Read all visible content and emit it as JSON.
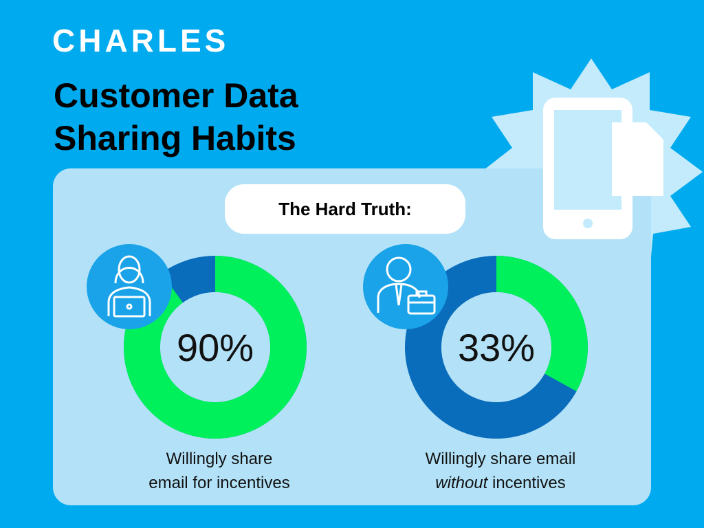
{
  "logo": "CHARLES",
  "title": "Customer Data Sharing Habits",
  "subtitle": "The Hard Truth:",
  "chart_data": [
    {
      "type": "donut",
      "values": [
        90
      ],
      "value_labels": [
        "90%"
      ],
      "color": "#00f05c",
      "track_color": "#0a6dbb",
      "caption": [
        "Willingly share",
        "email for incentives"
      ]
    },
    {
      "type": "donut",
      "values": [
        33
      ],
      "value_labels": [
        "33%"
      ],
      "color": "#00f05c",
      "track_color": "#0a6dbb",
      "caption": [
        "Willingly share email",
        "without",
        " incentives"
      ]
    }
  ]
}
